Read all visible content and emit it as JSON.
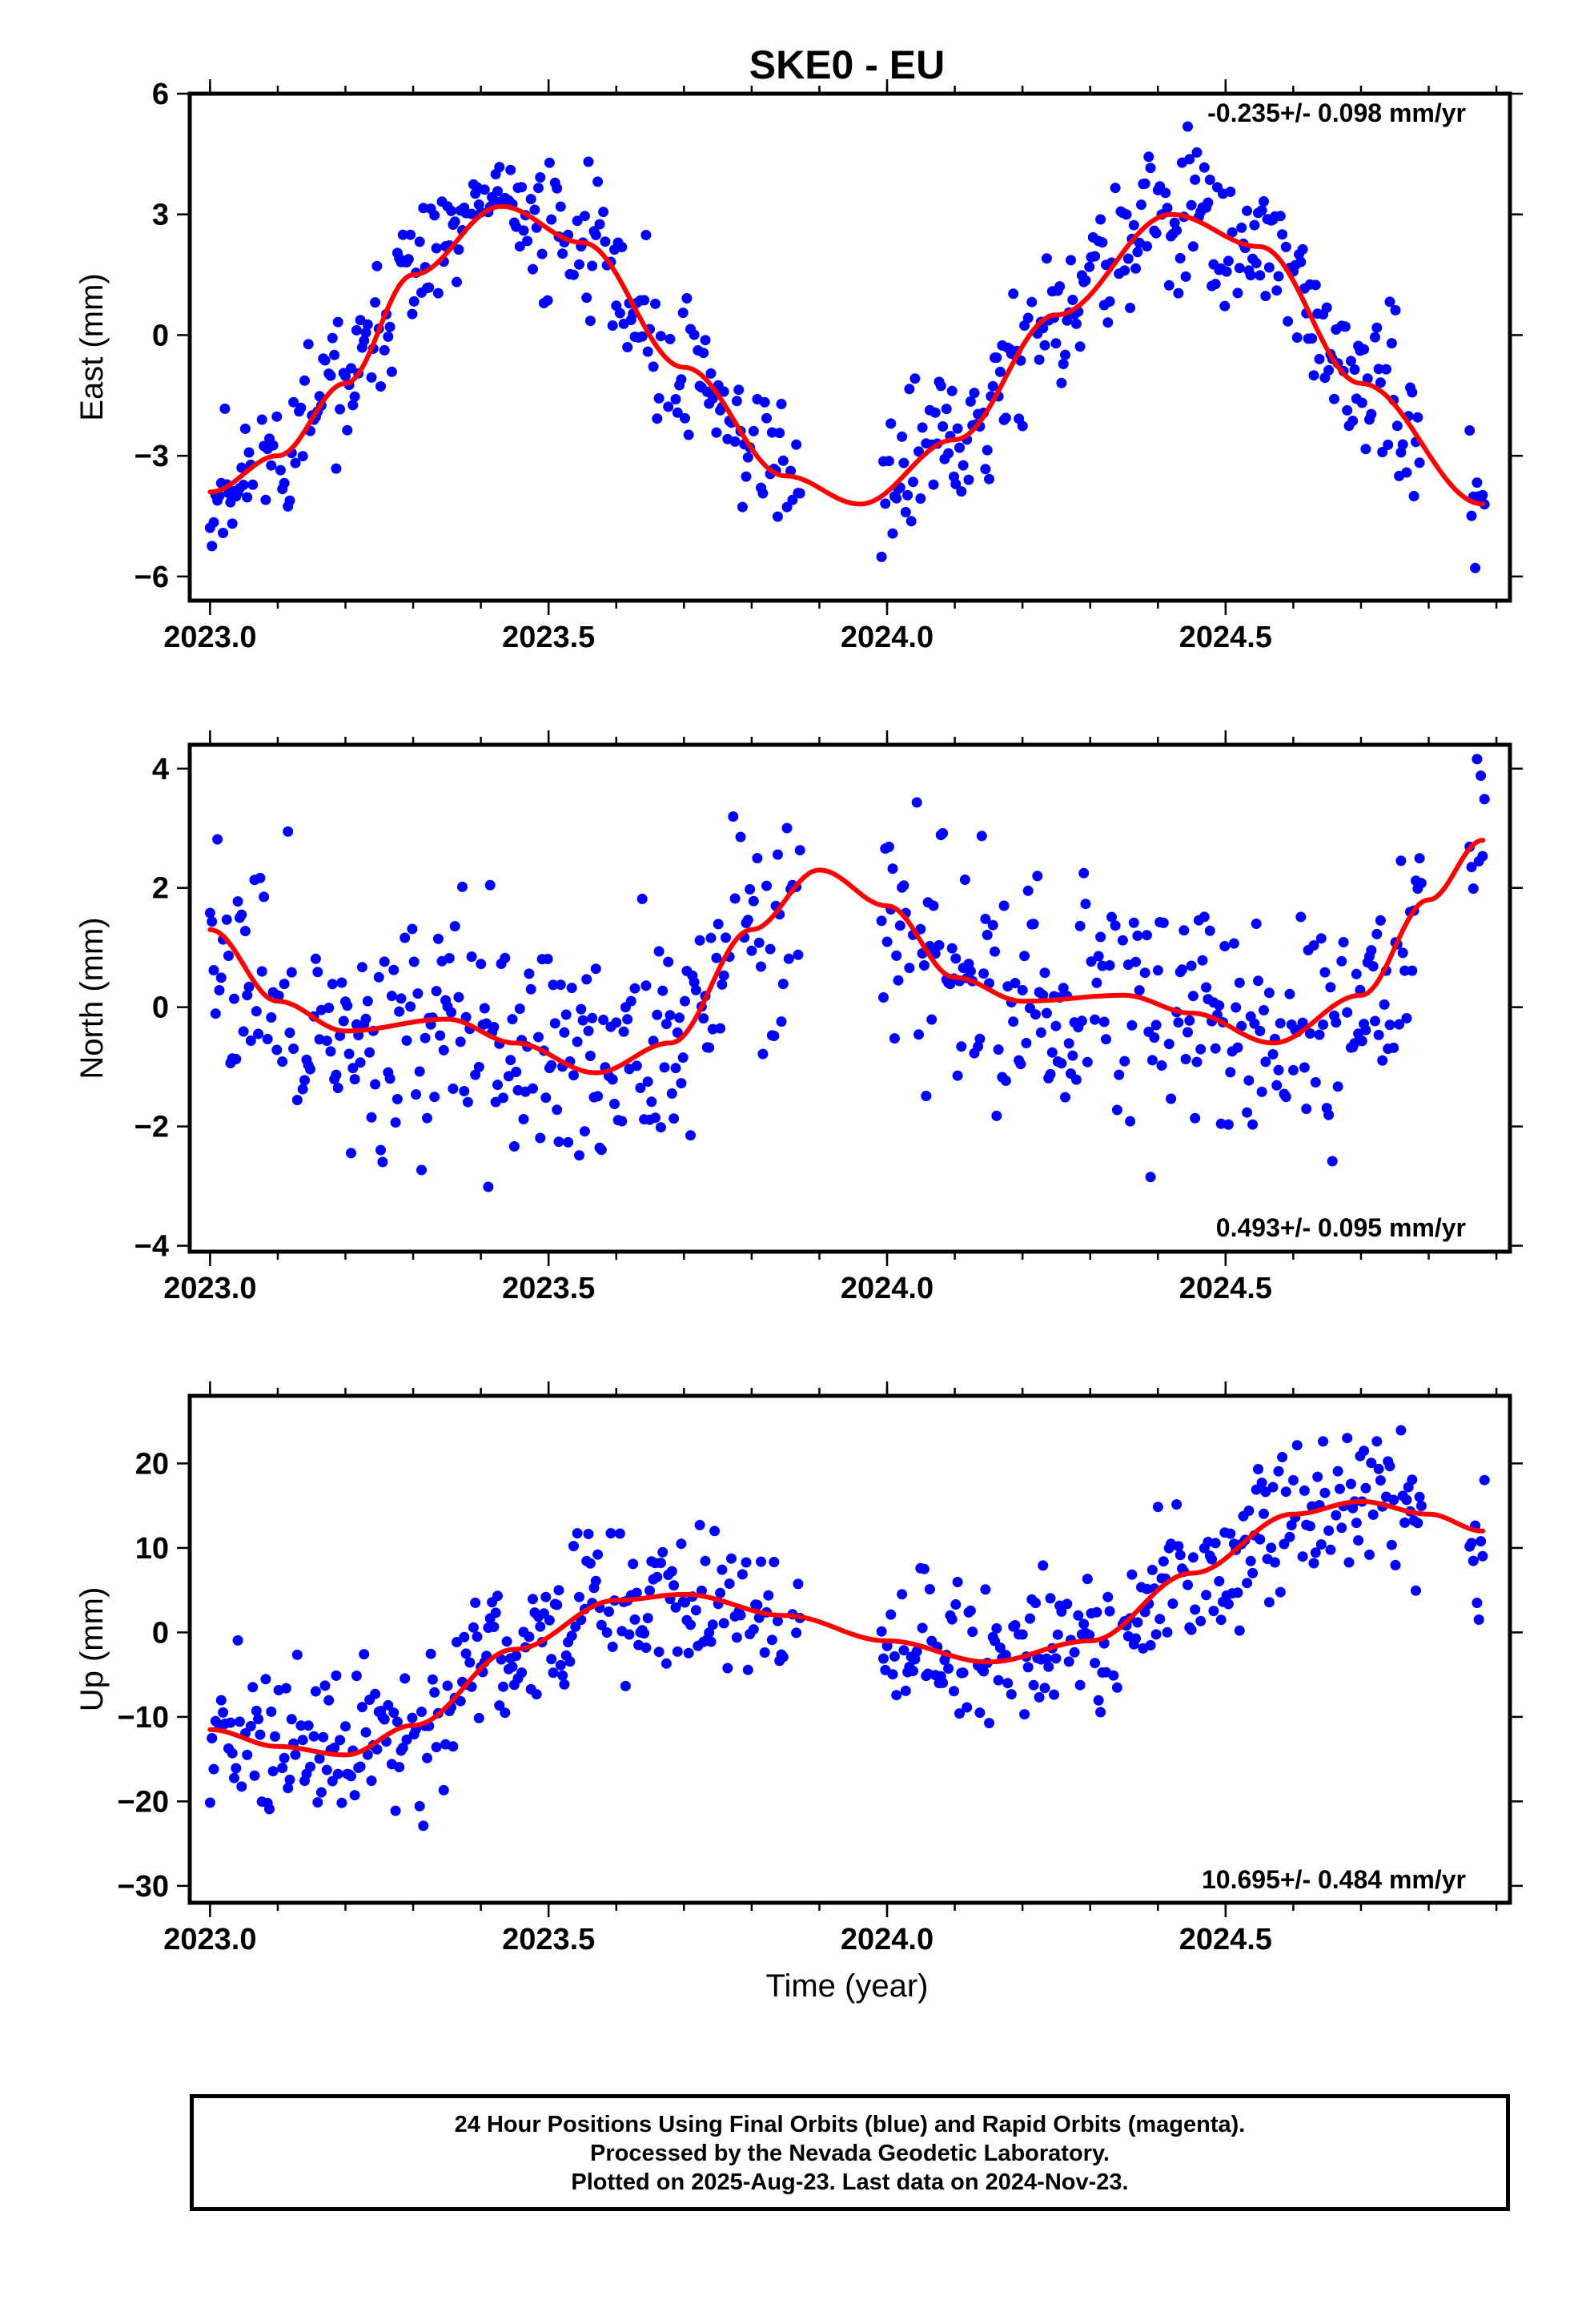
{
  "title": "SKE0 - EU",
  "xlabel": "Time (year)",
  "caption": [
    "24 Hour Positions Using Final Orbits (blue) and Rapid Orbits (magenta).",
    "Processed by the Nevada Geodetic Laboratory.",
    "Plotted on 2025-Aug-23. Last data on 2024-Nov-23."
  ],
  "colors": {
    "points": "#0000ff",
    "fit": "#ff0000",
    "axes": "#000000"
  },
  "chart_data": [
    {
      "type": "scatter",
      "ylabel": "East (mm)",
      "rate_label": "-0.235+/- 0.098 mm/yr",
      "xlim": [
        2022.97,
        2024.92
      ],
      "ylim": [
        -6.6,
        6
      ],
      "xticks": [
        2023.0,
        2023.5,
        2024.0,
        2024.5
      ],
      "xtick_labels": [
        "2023.0",
        "2023.5",
        "2024.0",
        "2024.5"
      ],
      "yticks": [
        -6,
        -3,
        0,
        3,
        6
      ],
      "ytick_labels": [
        "−6",
        "−3",
        "0",
        "3",
        "6"
      ],
      "fit": {
        "x": [
          2023.0,
          2023.1,
          2023.2,
          2023.3,
          2023.43,
          2023.55,
          2023.7,
          2023.85,
          2023.96,
          2024.1,
          2024.25,
          2024.42,
          2024.55,
          2024.7,
          2024.88
        ],
        "y": [
          -3.9,
          -3.0,
          -1.2,
          1.5,
          3.2,
          2.3,
          -0.8,
          -3.5,
          -4.2,
          -2.6,
          0.5,
          3.0,
          2.2,
          -1.2,
          -4.2
        ]
      },
      "noise": 0.9,
      "seed": 11
    },
    {
      "type": "scatter",
      "ylabel": "North (mm)",
      "rate_label": "0.493+/- 0.095 mm/yr",
      "xlim": [
        2022.97,
        2024.92
      ],
      "ylim": [
        -4.1,
        4.4
      ],
      "xticks": [
        2023.0,
        2023.5,
        2024.0,
        2024.5
      ],
      "xtick_labels": [
        "2023.0",
        "2023.5",
        "2024.0",
        "2024.5"
      ],
      "yticks": [
        -4,
        -2,
        0,
        2,
        4
      ],
      "ytick_labels": [
        "−4",
        "−2",
        "0",
        "2",
        "4"
      ],
      "fit": {
        "x": [
          2023.0,
          2023.1,
          2023.2,
          2023.35,
          2023.45,
          2023.57,
          2023.68,
          2023.8,
          2023.9,
          2024.0,
          2024.1,
          2024.2,
          2024.35,
          2024.45,
          2024.57,
          2024.7,
          2024.8,
          2024.88
        ],
        "y": [
          1.3,
          0.1,
          -0.4,
          -0.2,
          -0.6,
          -1.1,
          -0.6,
          1.3,
          2.3,
          1.7,
          0.5,
          0.1,
          0.2,
          -0.1,
          -0.6,
          0.2,
          1.8,
          2.8
        ]
      },
      "noise": 1.0,
      "seed": 23
    },
    {
      "type": "scatter",
      "ylabel": "Up (mm)",
      "rate_label": "10.695+/- 0.484 mm/yr",
      "xlim": [
        2022.97,
        2024.92
      ],
      "ylim": [
        -32,
        28
      ],
      "xticks": [
        2023.0,
        2023.5,
        2024.0,
        2024.5
      ],
      "xtick_labels": [
        "2023.0",
        "2023.5",
        "2024.0",
        "2024.5"
      ],
      "yticks": [
        -30,
        -20,
        -10,
        0,
        10,
        20
      ],
      "ytick_labels": [
        "−30",
        "−20",
        "−10",
        "0",
        "10",
        "20"
      ],
      "fit": {
        "x": [
          2023.0,
          2023.1,
          2023.2,
          2023.3,
          2023.45,
          2023.6,
          2023.7,
          2023.85,
          2024.0,
          2024.15,
          2024.3,
          2024.45,
          2024.6,
          2024.7,
          2024.8,
          2024.88
        ],
        "y": [
          -11.5,
          -13.5,
          -14.5,
          -11.0,
          -2.0,
          3.8,
          4.5,
          2.0,
          -1.0,
          -3.5,
          -1.0,
          7.0,
          14.0,
          15.5,
          14.0,
          12.0
        ]
      },
      "noise": 4.5,
      "seed": 37
    }
  ]
}
